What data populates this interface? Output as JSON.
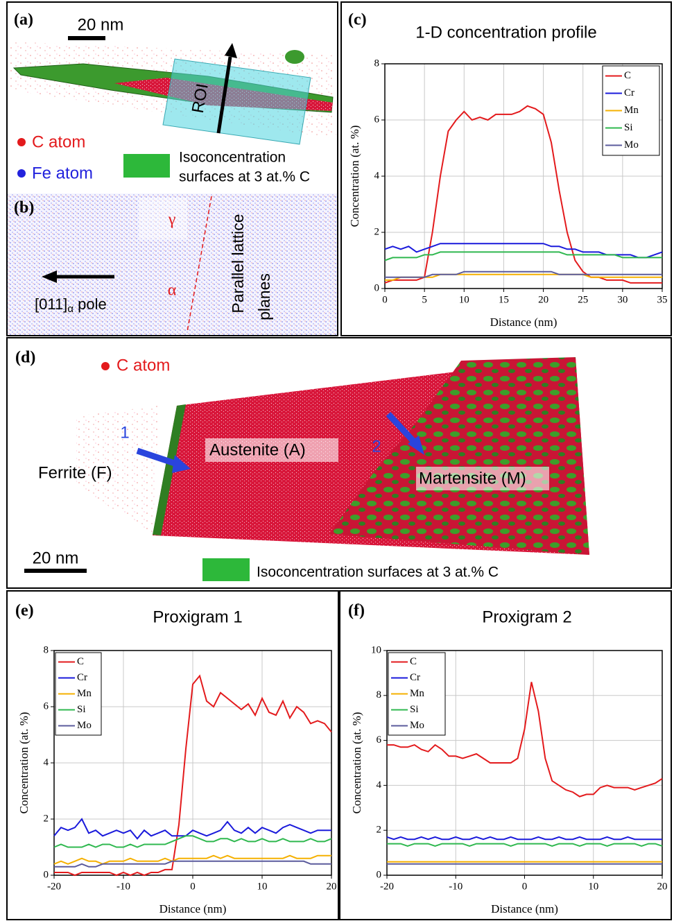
{
  "panels": {
    "a": {
      "label": "(a)",
      "scale_bar": "20 nm",
      "roi": "ROI",
      "c_atom": "C atom",
      "fe_atom": "Fe atom",
      "iso_line1": "Isoconcentration",
      "iso_line2": "surfaces at 3 at.% C"
    },
    "b": {
      "label": "(b)",
      "gamma": "γ",
      "alpha": "α",
      "pole_main": "[011]",
      "pole_sub": "α",
      "pole_suffix": " pole",
      "planes_line1": "Parallel lattice",
      "planes_line2": "planes"
    },
    "d": {
      "label": "(d)",
      "c_atom": "C atom",
      "marker1": "1",
      "marker2": "2",
      "austenite": "Austenite (A)",
      "martensite": "Martensite (M)",
      "ferrite": "Ferrite (F)",
      "scale_bar": "20 nm",
      "iso": "Isoconcentration surfaces at 3 at.% C"
    }
  },
  "chart_data": [
    {
      "type": "line",
      "panel_label": "(c)",
      "title": "1-D concentration profile",
      "x_label": "Distance (nm)",
      "y_label": "Concentration (at. %)",
      "xlim": [
        0,
        35
      ],
      "ylim": [
        0,
        8
      ],
      "xticks": [
        0,
        5,
        10,
        15,
        20,
        25,
        30,
        35
      ],
      "yticks": [
        0,
        2,
        4,
        6,
        8
      ],
      "grid": true,
      "legend": "top-right",
      "x": [
        0,
        1,
        2,
        3,
        4,
        5,
        6,
        7,
        8,
        9,
        10,
        11,
        12,
        13,
        14,
        15,
        16,
        17,
        18,
        19,
        20,
        21,
        22,
        23,
        24,
        25,
        26,
        27,
        28,
        29,
        30,
        31,
        32,
        33,
        34,
        35
      ],
      "series": [
        {
          "name": "C",
          "color": "#e31a1c",
          "values": [
            0.2,
            0.3,
            0.3,
            0.3,
            0.3,
            0.4,
            2.0,
            4.0,
            5.6,
            6.0,
            6.3,
            6.0,
            6.1,
            6.0,
            6.2,
            6.2,
            6.2,
            6.3,
            6.5,
            6.4,
            6.2,
            5.2,
            3.5,
            2.0,
            1.0,
            0.6,
            0.4,
            0.4,
            0.3,
            0.3,
            0.3,
            0.2,
            0.2,
            0.2,
            0.2,
            0.2
          ]
        },
        {
          "name": "Cr",
          "color": "#1a1adb",
          "values": [
            1.4,
            1.5,
            1.4,
            1.5,
            1.3,
            1.4,
            1.5,
            1.6,
            1.6,
            1.6,
            1.6,
            1.6,
            1.6,
            1.6,
            1.6,
            1.6,
            1.6,
            1.6,
            1.6,
            1.6,
            1.6,
            1.5,
            1.5,
            1.4,
            1.4,
            1.3,
            1.3,
            1.3,
            1.2,
            1.2,
            1.2,
            1.2,
            1.1,
            1.1,
            1.2,
            1.3
          ]
        },
        {
          "name": "Mn",
          "color": "#f5b000",
          "values": [
            0.3,
            0.3,
            0.4,
            0.4,
            0.4,
            0.4,
            0.4,
            0.5,
            0.5,
            0.5,
            0.5,
            0.5,
            0.5,
            0.5,
            0.5,
            0.5,
            0.5,
            0.5,
            0.5,
            0.5,
            0.5,
            0.5,
            0.5,
            0.5,
            0.5,
            0.5,
            0.4,
            0.4,
            0.4,
            0.4,
            0.4,
            0.4,
            0.4,
            0.4,
            0.4,
            0.4
          ]
        },
        {
          "name": "Si",
          "color": "#2fb84f",
          "values": [
            1.0,
            1.1,
            1.1,
            1.1,
            1.1,
            1.2,
            1.2,
            1.3,
            1.3,
            1.3,
            1.3,
            1.3,
            1.3,
            1.3,
            1.3,
            1.3,
            1.3,
            1.3,
            1.3,
            1.3,
            1.3,
            1.3,
            1.3,
            1.2,
            1.2,
            1.2,
            1.2,
            1.2,
            1.2,
            1.2,
            1.1,
            1.1,
            1.1,
            1.1,
            1.1,
            1.1
          ]
        },
        {
          "name": "Mo",
          "color": "#5b5b9c",
          "values": [
            0.4,
            0.4,
            0.4,
            0.4,
            0.4,
            0.4,
            0.5,
            0.5,
            0.5,
            0.5,
            0.6,
            0.6,
            0.6,
            0.6,
            0.6,
            0.6,
            0.6,
            0.6,
            0.6,
            0.6,
            0.6,
            0.6,
            0.5,
            0.5,
            0.5,
            0.5,
            0.5,
            0.5,
            0.5,
            0.5,
            0.5,
            0.5,
            0.5,
            0.5,
            0.5,
            0.5
          ]
        }
      ]
    },
    {
      "type": "line",
      "panel_label": "(e)",
      "title": "Proxigram 1",
      "x_label": "Distance (nm)",
      "y_label": "Concentration (at. %)",
      "xlim": [
        -20,
        20
      ],
      "ylim": [
        0,
        8
      ],
      "xticks": [
        -20,
        -10,
        0,
        10,
        20
      ],
      "yticks": [
        0,
        2,
        4,
        6,
        8
      ],
      "grid": true,
      "legend": "top-left",
      "x": [
        -20,
        -19,
        -18,
        -17,
        -16,
        -15,
        -14,
        -13,
        -12,
        -11,
        -10,
        -9,
        -8,
        -7,
        -6,
        -5,
        -4,
        -3,
        -2,
        -1,
        0,
        1,
        2,
        3,
        4,
        5,
        6,
        7,
        8,
        9,
        10,
        11,
        12,
        13,
        14,
        15,
        16,
        17,
        18,
        19,
        20
      ],
      "series": [
        {
          "name": "C",
          "color": "#e31a1c",
          "values": [
            0.1,
            0.1,
            0.1,
            0.0,
            0.1,
            0.1,
            0.1,
            0.1,
            0.1,
            0.0,
            0.1,
            0.0,
            0.1,
            0.0,
            0.1,
            0.1,
            0.2,
            0.2,
            1.8,
            4.5,
            6.8,
            7.1,
            6.2,
            6.0,
            6.5,
            6.3,
            6.1,
            5.9,
            6.1,
            5.7,
            6.3,
            5.8,
            5.7,
            6.2,
            5.6,
            6.0,
            5.8,
            5.4,
            5.5,
            5.4,
            5.1
          ]
        },
        {
          "name": "Cr",
          "color": "#1a1adb",
          "values": [
            1.4,
            1.7,
            1.6,
            1.7,
            2.0,
            1.5,
            1.6,
            1.4,
            1.5,
            1.6,
            1.5,
            1.6,
            1.3,
            1.6,
            1.4,
            1.5,
            1.6,
            1.4,
            1.4,
            1.4,
            1.6,
            1.5,
            1.4,
            1.5,
            1.6,
            1.9,
            1.6,
            1.5,
            1.7,
            1.5,
            1.7,
            1.6,
            1.5,
            1.7,
            1.8,
            1.7,
            1.6,
            1.5,
            1.6,
            1.6,
            1.6
          ]
        },
        {
          "name": "Mn",
          "color": "#f5b000",
          "values": [
            0.4,
            0.5,
            0.4,
            0.5,
            0.6,
            0.5,
            0.5,
            0.4,
            0.5,
            0.5,
            0.5,
            0.6,
            0.5,
            0.5,
            0.5,
            0.5,
            0.6,
            0.5,
            0.6,
            0.6,
            0.6,
            0.6,
            0.6,
            0.7,
            0.6,
            0.7,
            0.6,
            0.6,
            0.6,
            0.6,
            0.6,
            0.6,
            0.6,
            0.6,
            0.7,
            0.6,
            0.6,
            0.6,
            0.7,
            0.7,
            0.7
          ]
        },
        {
          "name": "Si",
          "color": "#2fb84f",
          "values": [
            1.0,
            1.1,
            1.0,
            1.0,
            1.0,
            1.1,
            1.0,
            1.1,
            1.1,
            1.0,
            1.0,
            1.1,
            1.0,
            1.1,
            1.1,
            1.1,
            1.1,
            1.2,
            1.3,
            1.4,
            1.4,
            1.3,
            1.2,
            1.2,
            1.3,
            1.3,
            1.2,
            1.3,
            1.2,
            1.2,
            1.3,
            1.2,
            1.2,
            1.3,
            1.2,
            1.2,
            1.2,
            1.3,
            1.2,
            1.2,
            1.3
          ]
        },
        {
          "name": "Mo",
          "color": "#5b5b9c",
          "values": [
            0.3,
            0.3,
            0.3,
            0.3,
            0.4,
            0.3,
            0.3,
            0.4,
            0.4,
            0.4,
            0.4,
            0.4,
            0.4,
            0.4,
            0.4,
            0.4,
            0.4,
            0.5,
            0.5,
            0.5,
            0.5,
            0.5,
            0.5,
            0.5,
            0.5,
            0.5,
            0.5,
            0.5,
            0.5,
            0.5,
            0.5,
            0.5,
            0.5,
            0.5,
            0.5,
            0.5,
            0.5,
            0.4,
            0.4,
            0.4,
            0.4
          ]
        }
      ]
    },
    {
      "type": "line",
      "panel_label": "(f)",
      "title": "Proxigram 2",
      "x_label": "Distance (nm)",
      "y_label": "Concentration (at. %)",
      "xlim": [
        -20,
        20
      ],
      "ylim": [
        0,
        10
      ],
      "xticks": [
        -20,
        -10,
        0,
        10,
        20
      ],
      "yticks": [
        0,
        2,
        4,
        6,
        8,
        10
      ],
      "grid": true,
      "legend": "top-left",
      "x": [
        -20,
        -19,
        -18,
        -17,
        -16,
        -15,
        -14,
        -13,
        -12,
        -11,
        -10,
        -9,
        -8,
        -7,
        -6,
        -5,
        -4,
        -3,
        -2,
        -1,
        0,
        1,
        2,
        3,
        4,
        5,
        6,
        7,
        8,
        9,
        10,
        11,
        12,
        13,
        14,
        15,
        16,
        17,
        18,
        19,
        20
      ],
      "series": [
        {
          "name": "C",
          "color": "#e31a1c",
          "values": [
            5.8,
            5.8,
            5.7,
            5.7,
            5.8,
            5.6,
            5.5,
            5.8,
            5.6,
            5.3,
            5.3,
            5.2,
            5.3,
            5.4,
            5.2,
            5.0,
            5.0,
            5.0,
            5.0,
            5.2,
            6.5,
            8.6,
            7.3,
            5.2,
            4.2,
            4.0,
            3.8,
            3.7,
            3.5,
            3.6,
            3.6,
            3.9,
            4.0,
            3.9,
            3.9,
            3.9,
            3.8,
            3.9,
            4.0,
            4.1,
            4.3
          ]
        },
        {
          "name": "Cr",
          "color": "#1a1adb",
          "values": [
            1.7,
            1.6,
            1.7,
            1.6,
            1.6,
            1.7,
            1.6,
            1.7,
            1.6,
            1.6,
            1.7,
            1.6,
            1.6,
            1.7,
            1.6,
            1.7,
            1.6,
            1.6,
            1.7,
            1.6,
            1.6,
            1.6,
            1.7,
            1.6,
            1.6,
            1.7,
            1.6,
            1.6,
            1.7,
            1.6,
            1.6,
            1.6,
            1.7,
            1.6,
            1.6,
            1.7,
            1.6,
            1.6,
            1.6,
            1.6,
            1.6
          ]
        },
        {
          "name": "Mn",
          "color": "#f5b000",
          "values": [
            0.6,
            0.6,
            0.6,
            0.6,
            0.6,
            0.6,
            0.6,
            0.6,
            0.6,
            0.6,
            0.6,
            0.6,
            0.6,
            0.6,
            0.6,
            0.6,
            0.6,
            0.6,
            0.6,
            0.6,
            0.6,
            0.6,
            0.6,
            0.6,
            0.6,
            0.6,
            0.6,
            0.6,
            0.6,
            0.6,
            0.6,
            0.6,
            0.6,
            0.6,
            0.6,
            0.6,
            0.6,
            0.6,
            0.6,
            0.6,
            0.6
          ]
        },
        {
          "name": "Si",
          "color": "#2fb84f",
          "values": [
            1.4,
            1.4,
            1.4,
            1.3,
            1.4,
            1.4,
            1.4,
            1.3,
            1.4,
            1.4,
            1.4,
            1.4,
            1.3,
            1.4,
            1.4,
            1.4,
            1.4,
            1.4,
            1.3,
            1.4,
            1.4,
            1.4,
            1.4,
            1.4,
            1.3,
            1.4,
            1.4,
            1.4,
            1.3,
            1.4,
            1.4,
            1.4,
            1.3,
            1.4,
            1.4,
            1.4,
            1.4,
            1.3,
            1.4,
            1.4,
            1.3
          ]
        },
        {
          "name": "Mo",
          "color": "#5b5b9c",
          "values": [
            0.5,
            0.5,
            0.5,
            0.5,
            0.5,
            0.5,
            0.5,
            0.5,
            0.5,
            0.5,
            0.5,
            0.5,
            0.5,
            0.5,
            0.5,
            0.5,
            0.5,
            0.5,
            0.5,
            0.5,
            0.5,
            0.5,
            0.5,
            0.5,
            0.5,
            0.5,
            0.5,
            0.5,
            0.5,
            0.5,
            0.5,
            0.5,
            0.5,
            0.5,
            0.5,
            0.5,
            0.5,
            0.5,
            0.5,
            0.5,
            0.5
          ]
        }
      ]
    }
  ]
}
